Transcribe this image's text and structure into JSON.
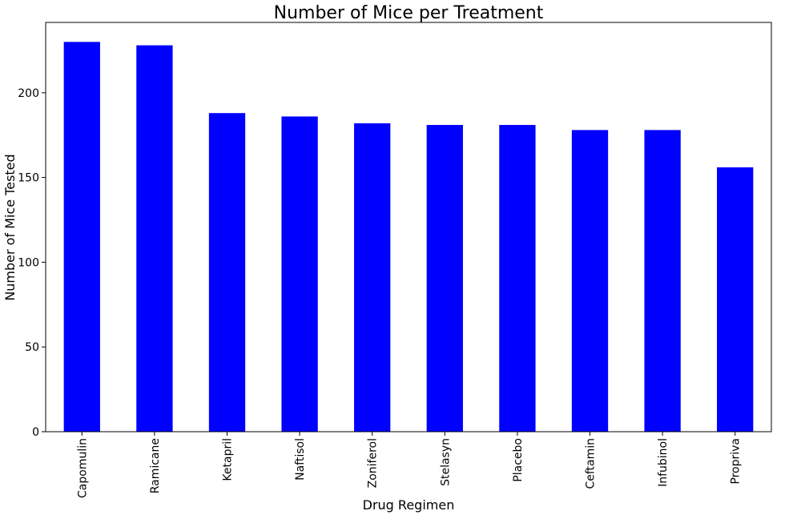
{
  "chart_data": {
    "type": "bar",
    "title": "Number of Mice per Treatment",
    "xlabel": "Drug Regimen",
    "ylabel": "Number of Mice Tested",
    "categories": [
      "Capomulin",
      "Ramicane",
      "Ketapril",
      "Naftisol",
      "Zoniferol",
      "Stelasyn",
      "Placebo",
      "Ceftamin",
      "Infubinol",
      "Propriva"
    ],
    "values": [
      230,
      228,
      188,
      186,
      182,
      181,
      181,
      178,
      178,
      156
    ],
    "ylim": [
      0,
      241.5
    ],
    "yticks": [
      0,
      50,
      100,
      150,
      200
    ],
    "bar_color": "#0000ff",
    "grid": false,
    "legend": "none"
  }
}
